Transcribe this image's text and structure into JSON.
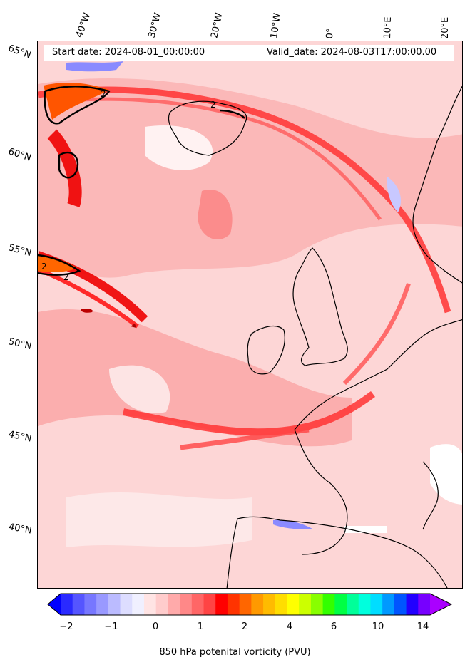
{
  "header": {
    "start_date": "Start date: 2024-08-01_00:00:00",
    "valid_date": "Valid_date: 2024-08-03T17:00:00.00"
  },
  "map": {
    "lon_labels": [
      "40°W",
      "30°W",
      "20°W",
      "10°W",
      "0°",
      "10°E",
      "20°E"
    ],
    "lat_labels": [
      "65°N",
      "60°N",
      "55°N",
      "50°N",
      "45°N",
      "40°N"
    ],
    "contour_label": "2",
    "colors": {
      "land_coast": "#000000",
      "background_pv": "#fde0e0"
    }
  },
  "colorbar": {
    "title": "850 hPa potenital vorticity (PVU)",
    "tick_labels": [
      "−2",
      "−1",
      "0",
      "1",
      "2",
      "4",
      "6",
      "10",
      "14"
    ],
    "colors": [
      "#0000ff",
      "#2a2aff",
      "#5555ff",
      "#7777ff",
      "#9999ff",
      "#bbbbff",
      "#ddddff",
      "#f0f0ff",
      "#ffe4e4",
      "#ffcccc",
      "#ffaaaa",
      "#ff8888",
      "#ff6666",
      "#ff4444",
      "#ff0000",
      "#ff3300",
      "#ff6600",
      "#ff9900",
      "#ffbb00",
      "#ffdd00",
      "#ffff00",
      "#ccff00",
      "#88ff00",
      "#33ff00",
      "#00ff44",
      "#00ff99",
      "#00ffdd",
      "#00ddff",
      "#0099ff",
      "#0055ff",
      "#2200ff",
      "#7700ff",
      "#aa00ff"
    ],
    "extend": "both"
  }
}
